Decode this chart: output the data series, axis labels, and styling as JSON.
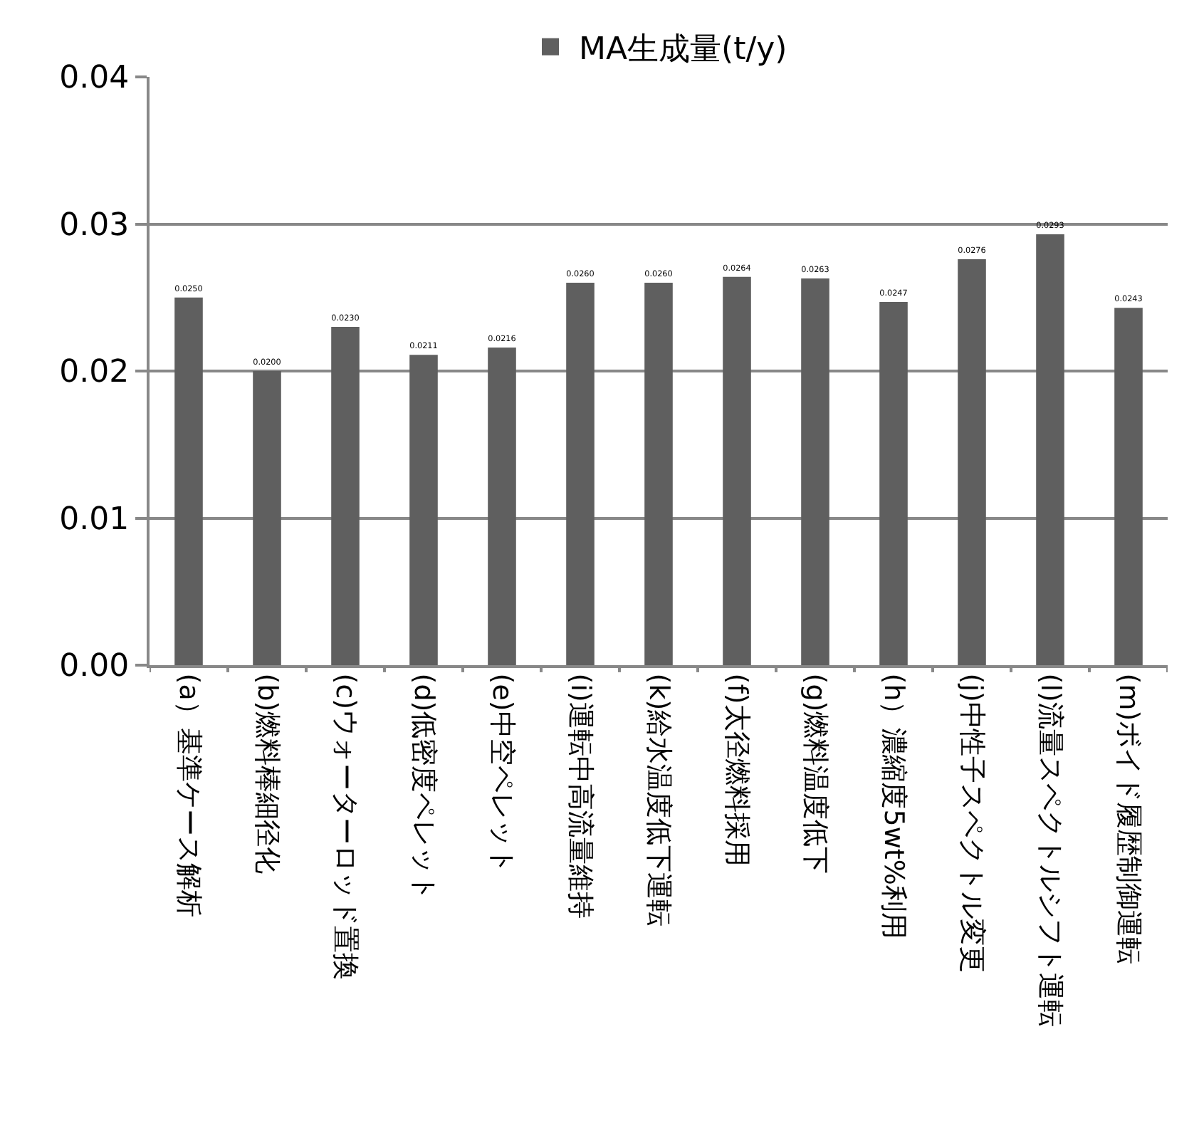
{
  "chart_data": {
    "type": "bar",
    "categories": [
      "(a）基準ケース解析",
      "(b)燃料棒細径化",
      "(c)ウォーターロッド置換",
      "(d)低密度ペレット",
      "(e)中空ペレット",
      "(i)運転中高流量維持",
      "(k)給水温度低下運転",
      "(f)太径燃料採用",
      "(g)燃料温度低下",
      "(h）濃縮度5wt%利用",
      "(j)中性子スペクトル変更",
      "(l)流量スペクトルシフト運転",
      "(m)ボイド履歴制御運転"
    ],
    "series": [
      {
        "name": "MA生成量(t/y)",
        "color": "#5f5f5f",
        "values": [
          0.025,
          0.02,
          0.023,
          0.0211,
          0.0216,
          0.026,
          0.026,
          0.0264,
          0.0263,
          0.0247,
          0.0276,
          0.0293,
          0.0243
        ],
        "value_labels": [
          "0.0250",
          "0.0200",
          "0.0230",
          "0.0211",
          "0.0216",
          "0.0260",
          "0.0260",
          "0.0264",
          "0.0263",
          "0.0247",
          "0.0276",
          "0.0293",
          "0.0243"
        ]
      }
    ],
    "ylim": [
      0,
      0.04
    ],
    "yticks": [
      {
        "value": 0,
        "label": "0.00"
      },
      0.01,
      0.02,
      0.03,
      0.04
    ],
    "grid": "y",
    "legend": "top"
  }
}
